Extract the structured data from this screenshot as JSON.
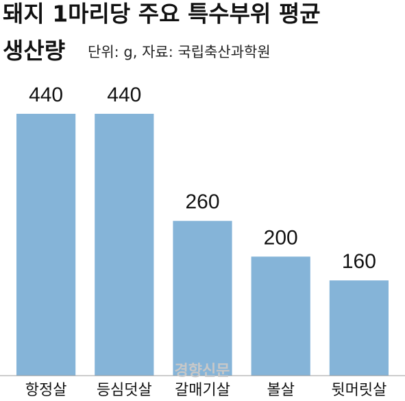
{
  "chart_data": {
    "type": "bar",
    "title": [
      "돼지 1마리당 주요 특수부위 평균",
      "생산량"
    ],
    "subtitle": "단위: g, 자료: 국립축산과학원",
    "categories": [
      "항정살",
      "등심덧살",
      "갈매기살",
      "볼살",
      "뒷머릿살"
    ],
    "values": [
      440,
      440,
      260,
      200,
      160
    ],
    "color": "#85b4d8",
    "watermark": "경향신문"
  }
}
